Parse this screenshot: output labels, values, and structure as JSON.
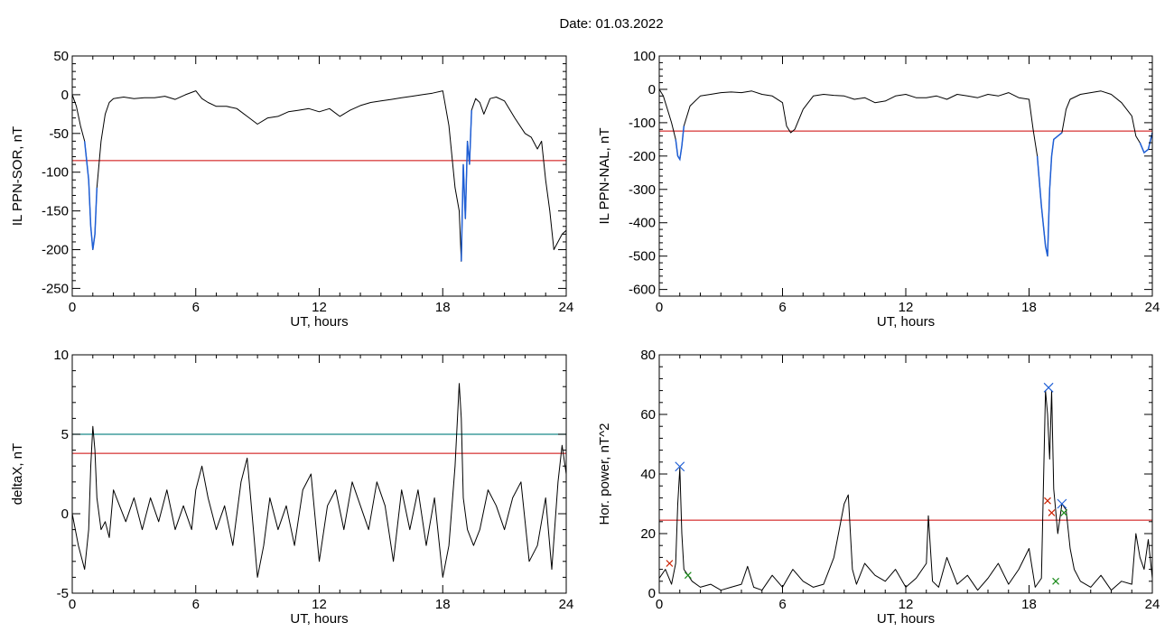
{
  "header": {
    "date_label": "Date:  01.03.2022"
  },
  "colors": {
    "trace": "#000000",
    "threshold": "#cc0000",
    "secondary_threshold": "#1a8a8a",
    "substorm": "#1f5fd6",
    "peak_marker": "#1f5fd6",
    "minor_marker": "#cc2200",
    "green_marker": "#1a8a1a"
  },
  "chart_data": [
    {
      "id": "sor",
      "type": "line",
      "xlabel": "UT, hours",
      "ylabel": "IL PPN-SOR, nT",
      "xlim": [
        0,
        24
      ],
      "ylim": [
        -260,
        50
      ],
      "xticks": [
        0,
        6,
        12,
        18,
        24
      ],
      "yticks": [
        50,
        0,
        -50,
        -100,
        -150,
        -200,
        -250
      ],
      "threshold": -85,
      "series": [
        {
          "x": [
            0,
            0.2,
            0.4,
            0.6,
            0.8,
            0.9,
            1.0,
            1.1,
            1.2,
            1.4,
            1.6,
            1.8,
            2.0,
            2.5,
            3,
            3.5,
            4,
            4.5,
            5,
            5.5,
            6,
            6.3,
            6.6,
            7,
            7.5,
            8,
            8.5,
            9,
            9.5,
            10,
            10.5,
            11,
            11.5,
            12,
            12.5,
            13,
            13.5,
            14,
            14.5,
            15,
            15.5,
            16,
            16.5,
            17,
            17.5,
            18,
            18.3,
            18.6,
            18.8,
            18.9,
            19.0,
            19.1,
            19.2,
            19.3,
            19.4,
            19.6,
            19.8,
            20,
            20.3,
            20.6,
            21,
            21.5,
            22,
            22.3,
            22.6,
            22.8,
            23,
            23.2,
            23.4,
            23.6,
            23.8,
            24
          ],
          "y": [
            0,
            -15,
            -40,
            -60,
            -110,
            -170,
            -200,
            -180,
            -120,
            -60,
            -25,
            -10,
            -5,
            -3,
            -5,
            -4,
            -4,
            -2,
            -6,
            0,
            5,
            -5,
            -10,
            -15,
            -15,
            -18,
            -28,
            -38,
            -30,
            -28,
            -22,
            -20,
            -18,
            -22,
            -18,
            -28,
            -20,
            -14,
            -10,
            -8,
            -6,
            -4,
            -2,
            0,
            2,
            5,
            -40,
            -120,
            -150,
            -215,
            -90,
            -160,
            -60,
            -90,
            -20,
            -5,
            -10,
            -25,
            -5,
            -3,
            -8,
            -30,
            -50,
            -55,
            -70,
            -60,
            -110,
            -150,
            -200,
            -190,
            -180,
            -175
          ]
        }
      ],
      "highlight_ranges": [
        [
          0.6,
          1.3
        ],
        [
          18.9,
          19.5
        ]
      ]
    },
    {
      "id": "nal",
      "type": "line",
      "xlabel": "UT, hours",
      "ylabel": "IL PPN-NAL, nT",
      "xlim": [
        0,
        24
      ],
      "ylim": [
        -620,
        100
      ],
      "xticks": [
        0,
        6,
        12,
        18,
        24
      ],
      "yticks": [
        100,
        0,
        -100,
        -200,
        -300,
        -400,
        -500,
        -600
      ],
      "threshold": -125,
      "series": [
        {
          "x": [
            0,
            0.2,
            0.4,
            0.6,
            0.8,
            0.9,
            1.0,
            1.1,
            1.2,
            1.5,
            2,
            2.5,
            3,
            3.5,
            4,
            4.5,
            5,
            5.5,
            6,
            6.2,
            6.4,
            6.6,
            7,
            7.5,
            8,
            8.5,
            9,
            9.5,
            10,
            10.5,
            11,
            11.5,
            12,
            12.5,
            13,
            13.5,
            14,
            14.5,
            15,
            15.5,
            16,
            16.5,
            17,
            17.5,
            18,
            18.2,
            18.4,
            18.6,
            18.8,
            18.9,
            19.0,
            19.1,
            19.2,
            19.4,
            19.6,
            19.8,
            20,
            20.5,
            21,
            21.5,
            22,
            22.5,
            23,
            23.2,
            23.4,
            23.6,
            23.8,
            24
          ],
          "y": [
            0,
            -20,
            -60,
            -100,
            -150,
            -200,
            -210,
            -170,
            -110,
            -50,
            -20,
            -15,
            -10,
            -8,
            -10,
            -5,
            -15,
            -20,
            -40,
            -110,
            -130,
            -120,
            -60,
            -20,
            -15,
            -18,
            -20,
            -30,
            -25,
            -40,
            -35,
            -20,
            -15,
            -25,
            -25,
            -20,
            -30,
            -15,
            -20,
            -25,
            -15,
            -20,
            -10,
            -25,
            -30,
            -120,
            -200,
            -350,
            -470,
            -500,
            -300,
            -200,
            -150,
            -140,
            -130,
            -60,
            -30,
            -15,
            -10,
            -5,
            -15,
            -40,
            -80,
            -140,
            -160,
            -190,
            -180,
            -130
          ]
        }
      ],
      "highlight_ranges": [
        [
          0.7,
          1.2
        ],
        [
          18.3,
          19.6
        ],
        [
          23.3,
          24
        ]
      ]
    },
    {
      "id": "deltax",
      "type": "line",
      "xlabel": "UT, hours",
      "ylabel": "deltaX, nT",
      "xlim": [
        0,
        24
      ],
      "ylim": [
        -5,
        10
      ],
      "xticks": [
        0,
        6,
        12,
        18,
        24
      ],
      "yticks": [
        10,
        5,
        0,
        -5
      ],
      "threshold": 3.8,
      "secondary_threshold": 5,
      "series": [
        {
          "x": [
            0,
            0.3,
            0.6,
            0.8,
            0.9,
            1.0,
            1.1,
            1.2,
            1.4,
            1.6,
            1.8,
            2.0,
            2.3,
            2.6,
            3,
            3.4,
            3.8,
            4.2,
            4.6,
            5,
            5.4,
            5.8,
            6,
            6.3,
            6.6,
            7,
            7.4,
            7.8,
            8.2,
            8.5,
            8.8,
            9,
            9.3,
            9.6,
            10,
            10.4,
            10.8,
            11.2,
            11.6,
            12,
            12.4,
            12.8,
            13.2,
            13.6,
            14,
            14.4,
            14.8,
            15.2,
            15.6,
            16,
            16.4,
            16.8,
            17.2,
            17.6,
            18,
            18.3,
            18.6,
            18.8,
            18.9,
            19.0,
            19.2,
            19.5,
            19.8,
            20.2,
            20.6,
            21,
            21.4,
            21.8,
            22.2,
            22.6,
            23,
            23.3,
            23.6,
            23.8,
            24
          ],
          "y": [
            0,
            -2,
            -3.5,
            -1,
            3,
            5.5,
            4,
            1,
            -1,
            -0.5,
            -1.5,
            1.5,
            0.5,
            -0.5,
            1,
            -1,
            1,
            -0.5,
            1.5,
            -1,
            0.5,
            -1,
            1.5,
            3,
            1,
            -1,
            0.5,
            -2,
            2,
            3.5,
            -1,
            -4,
            -2,
            1,
            -1,
            0.5,
            -2,
            1.5,
            2.5,
            -3,
            0.5,
            1.5,
            -1,
            2,
            0.5,
            -1,
            2,
            0.5,
            -3,
            1.5,
            -1,
            1.5,
            -2,
            1,
            -4,
            -2,
            3,
            8.2,
            6,
            1,
            -1,
            -2,
            -1,
            1.5,
            0.5,
            -1,
            1,
            2,
            -3,
            -2,
            1,
            -3.5,
            2,
            4.3,
            2.5
          ]
        }
      ]
    },
    {
      "id": "power",
      "type": "line",
      "xlabel": "UT, hours",
      "ylabel": "Hor. power, nT^2",
      "xlim": [
        0,
        24
      ],
      "ylim": [
        0,
        80
      ],
      "xticks": [
        0,
        6,
        12,
        18,
        24
      ],
      "yticks": [
        80,
        60,
        40,
        20,
        0
      ],
      "threshold": 24.5,
      "series": [
        {
          "x": [
            0,
            0.3,
            0.6,
            0.8,
            0.9,
            1.0,
            1.1,
            1.2,
            1.4,
            1.6,
            2,
            2.5,
            3,
            3.5,
            4,
            4.3,
            4.6,
            5,
            5.5,
            6,
            6.5,
            7,
            7.5,
            8,
            8.5,
            9,
            9.2,
            9.4,
            9.6,
            10,
            10.5,
            11,
            11.5,
            12,
            12.5,
            13,
            13.1,
            13.3,
            13.6,
            14,
            14.5,
            15,
            15.5,
            16,
            16.5,
            17,
            17.5,
            18,
            18.3,
            18.6,
            18.8,
            18.9,
            19.0,
            19.1,
            19.2,
            19.4,
            19.6,
            19.8,
            20,
            20.2,
            20.5,
            21,
            21.5,
            22,
            22.5,
            23,
            23.2,
            23.4,
            23.6,
            23.8,
            24
          ],
          "y": [
            5,
            8,
            3,
            10,
            30,
            42,
            20,
            8,
            6,
            4,
            2,
            3,
            1,
            2,
            3,
            9,
            2,
            1,
            6,
            2,
            8,
            4,
            2,
            3,
            12,
            30,
            33,
            8,
            3,
            10,
            6,
            4,
            8,
            2,
            5,
            10,
            26,
            4,
            2,
            12,
            3,
            6,
            1,
            5,
            10,
            3,
            8,
            15,
            2,
            5,
            68,
            60,
            45,
            68,
            35,
            20,
            30,
            28,
            15,
            8,
            4,
            2,
            6,
            1,
            4,
            3,
            20,
            12,
            8,
            18,
            5
          ]
        }
      ],
      "markers": [
        {
          "x": 1.0,
          "y": 42.5,
          "kind": "peak"
        },
        {
          "x": 18.95,
          "y": 69,
          "kind": "peak"
        },
        {
          "x": 19.6,
          "y": 30,
          "kind": "peak"
        },
        {
          "x": 0.5,
          "y": 10,
          "kind": "minor"
        },
        {
          "x": 18.9,
          "y": 31,
          "kind": "minor"
        },
        {
          "x": 19.1,
          "y": 27,
          "kind": "minor"
        },
        {
          "x": 1.4,
          "y": 6,
          "kind": "green"
        },
        {
          "x": 19.3,
          "y": 4,
          "kind": "green"
        },
        {
          "x": 19.7,
          "y": 27,
          "kind": "green"
        }
      ]
    }
  ]
}
